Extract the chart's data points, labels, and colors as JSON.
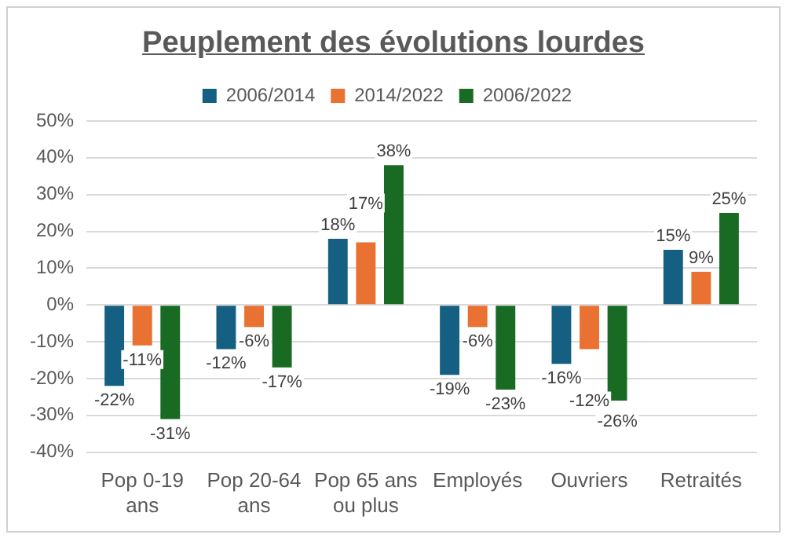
{
  "chart_data": {
    "type": "bar",
    "title": "Peuplement des évolutions lourdes",
    "categories": [
      "Pop 0-19 ans",
      "Pop 20-64 ans",
      "Pop 65 ans ou plus",
      "Employés",
      "Ouvriers",
      "Retraités"
    ],
    "series": [
      {
        "name": "2006/2014",
        "color": "#156082",
        "values": [
          -22,
          -12,
          18,
          -19,
          -16,
          15
        ],
        "value_labels": [
          "-22%",
          "-12%",
          "18%",
          "-19%",
          "-16%",
          "15%"
        ]
      },
      {
        "name": "2014/2022",
        "color": "#e97132",
        "values": [
          -11,
          -6,
          17,
          -6,
          -12,
          9
        ],
        "value_labels": [
          "-11%",
          "-6%",
          "17%",
          "-6%",
          "-12%",
          "9%"
        ]
      },
      {
        "name": "2006/2022",
        "color": "#196b24",
        "values": [
          -31,
          -17,
          38,
          -23,
          -26,
          25
        ],
        "value_labels": [
          "-31%",
          "-17%",
          "38%",
          "-23%",
          "-26%",
          "25%"
        ]
      }
    ],
    "ylim": [
      -40,
      50
    ],
    "yticks": [
      {
        "value": -40,
        "label": "-40%"
      },
      {
        "value": -30,
        "label": "-30%"
      },
      {
        "value": -20,
        "label": "-20%"
      },
      {
        "value": -10,
        "label": "-10%"
      },
      {
        "value": 0,
        "label": "0%"
      },
      {
        "value": 10,
        "label": "10%"
      },
      {
        "value": 20,
        "label": "20%"
      },
      {
        "value": 30,
        "label": "30%"
      },
      {
        "value": 40,
        "label": "40%"
      },
      {
        "value": 50,
        "label": "50%"
      }
    ],
    "grid": "y",
    "legend": "top"
  }
}
